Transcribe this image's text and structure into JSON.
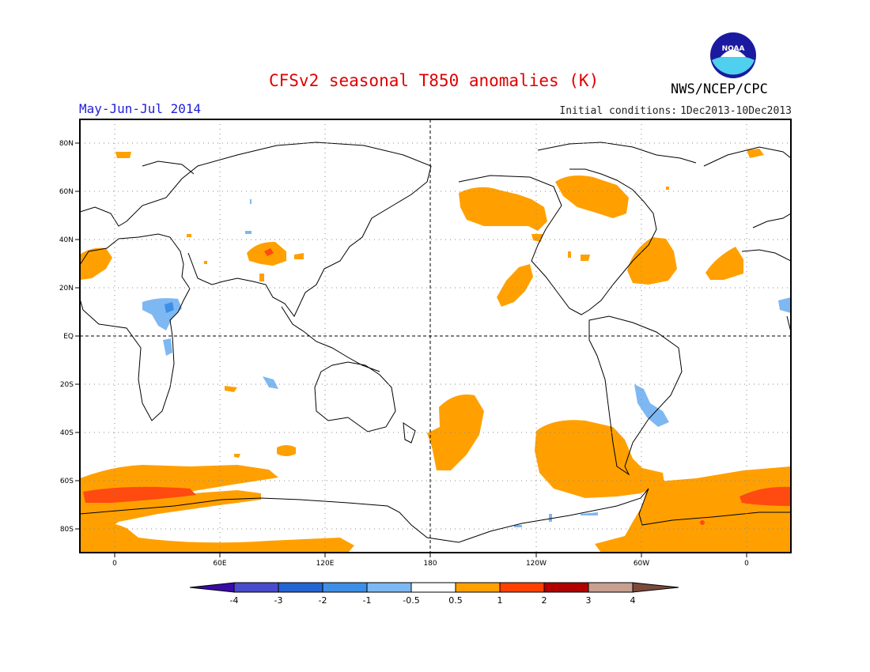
{
  "title": "CFSv2 seasonal T850 anomalies (K)",
  "organization": "NWS/NCEP/CPC",
  "logo_text": "NOAA",
  "period": "May-Jun-Jul 2014",
  "initial_conditions": {
    "label": "Initial conditions:",
    "value": "1Dec2013-10Dec2013"
  },
  "map": {
    "projection": "equirectangular, centred on 180",
    "lat_ticks": [
      "80N",
      "60N",
      "40N",
      "20N",
      "EQ",
      "20S",
      "40S",
      "60S",
      "80S"
    ],
    "lon_ticks": [
      "0",
      "60E",
      "120E",
      "180",
      "120W",
      "60W",
      "0"
    ],
    "grid": "dotted",
    "dashed_lines": [
      "Equator",
      "180 meridian"
    ],
    "warm_anomaly_regions": [
      "Southern Ocean / Antarctic coast belt",
      "Southern Ocean around Atlantic/Indian sector (strong)",
      "Southeast Pacific off South America",
      "Central South Pacific",
      "Gulf of Alaska and western Canada",
      "Northeast Canada / Hudson Bay",
      "North Atlantic off US East Coast",
      "Subtropical northeast Pacific",
      "Tibetan Plateau",
      "Northwest Africa / Iberia",
      "East Antarctica / Weddell sector"
    ],
    "cool_anomaly_regions": [
      "East Africa / Horn of Africa",
      "Southeast South America / South Atlantic",
      "Southern Indian Ocean (small)"
    ]
  },
  "colorbar": {
    "labels": [
      "-4",
      "-3",
      "-2",
      "-1",
      "-0.5",
      "0.5",
      "1",
      "2",
      "3",
      "4"
    ],
    "colors": [
      "#3a0aa8",
      "#4a4acc",
      "#2464d0",
      "#3d8fe6",
      "#7eb8f2",
      "#ffffff",
      "#ffa000",
      "#ff4000",
      "#b00000",
      "#c8a090",
      "#7a4a3a"
    ]
  },
  "colors": {
    "title": "#e00000",
    "period": "#1f1fd6",
    "warm1": "#ffa000",
    "warm2": "#ff4a10",
    "warm3": "#c00000",
    "cool1": "#7eb8f2",
    "cool2": "#3d8fe6"
  }
}
